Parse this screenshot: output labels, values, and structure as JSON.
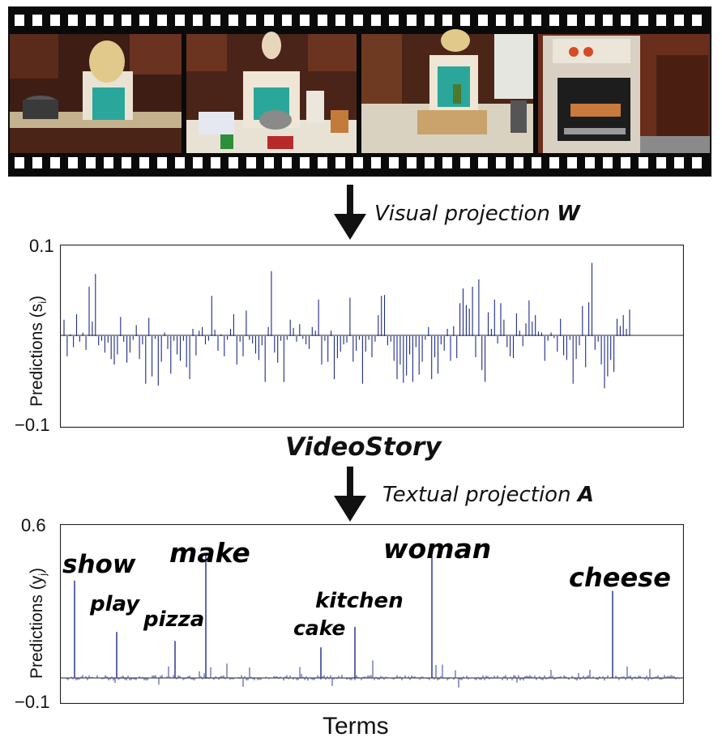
{
  "visual_arrow": {
    "text": "Visual projection ",
    "bold": "W"
  },
  "textual_arrow": {
    "text": "Textual projection ",
    "bold": "A"
  },
  "middle_title": "VideoStory",
  "colors": {
    "stem": "#1c2a88",
    "axis": "#222222"
  },
  "film_frames": [
    {
      "scene": "woman cooking at stove"
    },
    {
      "scene": "woman stirring pot at counter"
    },
    {
      "scene": "woman spreading dough on board"
    },
    {
      "scene": "oven with tray inside"
    }
  ],
  "chart_data": [
    {
      "type": "bar",
      "ylabel": "Predictions (s",
      "ylabel_sub": "i",
      "ylabel_end": ")",
      "ylim": [
        -0.1,
        0.1
      ],
      "yticks": [
        "0.1",
        "−0.1"
      ],
      "grid": false,
      "values": [
        0.018,
        -0.022,
        0.002,
        -0.012,
        0.024,
        -0.006,
        0.004,
        -0.015,
        0.054,
        0.016,
        0.068,
        -0.01,
        -0.005,
        -0.018,
        -0.007,
        -0.025,
        -0.031,
        -0.02,
        0.021,
        -0.006,
        -0.029,
        -0.018,
        -0.004,
        0.012,
        -0.025,
        -0.009,
        -0.052,
        0.02,
        -0.044,
        -0.003,
        -0.054,
        -0.028,
        0.004,
        -0.014,
        -0.041,
        -0.005,
        -0.02,
        -0.027,
        -0.005,
        -0.034,
        -0.047,
        0.008,
        -0.021,
        0.006,
        0.01,
        -0.009,
        -0.005,
        0.044,
        0.007,
        -0.016,
        0.002,
        -0.022,
        -0.004,
        0.008,
        0.024,
        -0.031,
        -0.006,
        -0.022,
        0.028,
        -0.004,
        -0.008,
        -0.019,
        -0.026,
        -0.01,
        -0.05,
        0.01,
        0.071,
        -0.018,
        -0.029,
        -0.005,
        -0.05,
        -0.004,
        0.018,
        0.009,
        -0.006,
        0.013,
        -0.003,
        -0.009,
        -0.014,
        0.01,
        0.006,
        0.04,
        -0.031,
        -0.005,
        -0.028,
        0.006,
        -0.047,
        -0.024,
        -0.017,
        -0.009,
        -0.007,
        0.042,
        -0.028,
        -0.016,
        -0.004,
        -0.052,
        -0.017,
        -0.004,
        -0.023,
        -0.006,
        0.023,
        0.044,
        0.045,
        -0.01,
        -0.006,
        -0.027,
        -0.047,
        -0.031,
        -0.051,
        -0.043,
        -0.02,
        -0.05,
        -0.012,
        -0.042,
        -0.028,
        -0.004,
        0.01,
        -0.047,
        -0.023,
        -0.041,
        -0.009,
        -0.016,
        0.008,
        -0.027,
        0.011,
        -0.024,
        0.036,
        0.052,
        0.034,
        0.03,
        0.054,
        -0.023,
        0.062,
        -0.037,
        -0.05,
        0.026,
        0.008,
        0.04,
        -0.008,
        0.036,
        0.018,
        -0.012,
        -0.022,
        -0.024,
        0.025,
        0.006,
        -0.011,
        0.014,
        0.039,
        0.016,
        0.023,
        0.005,
        0.004,
        -0.027,
        -0.005,
        0.004,
        -0.002,
        -0.017,
        0.019,
        -0.021,
        -0.026,
        -0.004,
        -0.052,
        -0.025,
        -0.01,
        0.033,
        -0.034,
        0.037,
        0.08,
        -0.015,
        -0.006,
        -0.031,
        -0.057,
        -0.044,
        -0.026,
        -0.039,
        0.019,
        0.011,
        0.023,
        0.008,
        0.029
      ]
    },
    {
      "type": "bar",
      "ylabel": "Predictions (y",
      "ylabel_sub": "j",
      "ylabel_end": ")",
      "xlabel": "Terms",
      "ylim": [
        -0.1,
        0.6
      ],
      "yticks": [
        "0.6",
        "−0.1"
      ],
      "grid": false,
      "highlighted_terms": [
        {
          "term": "show",
          "value": 0.38
        },
        {
          "term": "play",
          "value": 0.18
        },
        {
          "term": "pizza",
          "value": 0.145
        },
        {
          "term": "make",
          "value": 0.48
        },
        {
          "term": "cake",
          "value": 0.12
        },
        {
          "term": "kitchen",
          "value": 0.2
        },
        {
          "term": "woman",
          "value": 0.475
        },
        {
          "term": "cheese",
          "value": 0.34
        }
      ]
    }
  ]
}
